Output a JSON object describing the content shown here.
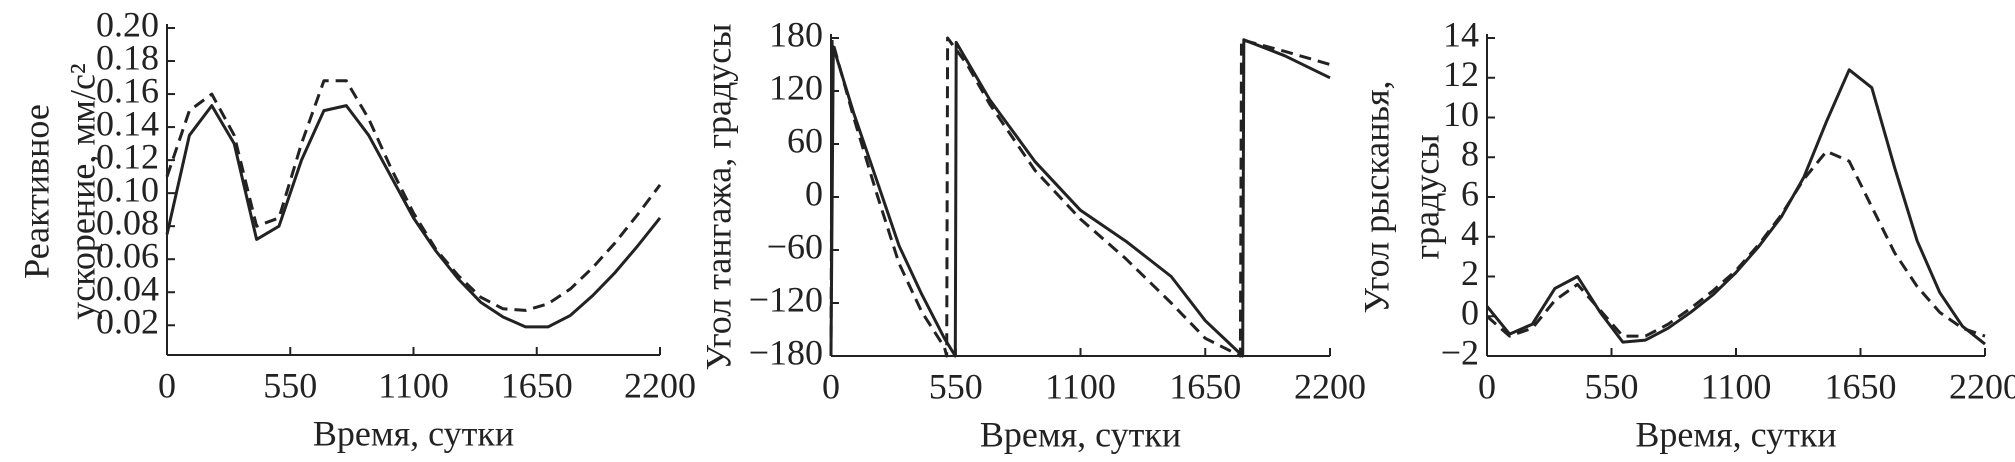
{
  "chart_data": [
    {
      "type": "line",
      "ylabel": [
        "Реактивное",
        "ускорение, мм/с²"
      ],
      "xlabel": "Время, сутки",
      "xlim": [
        0,
        2200
      ],
      "xticks": [
        0,
        550,
        1100,
        1650,
        2200
      ],
      "ylim": [
        0.002,
        0.2
      ],
      "yticks": [
        0.02,
        0.04,
        0.06,
        0.08,
        {
          "value": 0.1,
          "label": "0.10"
        },
        0.12,
        0.14,
        0.16,
        0.18,
        {
          "value": 0.2,
          "label": "0.20"
        }
      ],
      "x": [
        0,
        100,
        200,
        300,
        400,
        500,
        600,
        700,
        800,
        900,
        1000,
        1100,
        1200,
        1300,
        1400,
        1500,
        1600,
        1700,
        1800,
        1900,
        2000,
        2100,
        2200
      ],
      "series": [
        {
          "color": "#222222",
          "line_style": "solid",
          "values": [
            0.075,
            0.135,
            0.153,
            0.13,
            0.072,
            0.08,
            0.12,
            0.15,
            0.153,
            0.135,
            0.11,
            0.085,
            0.065,
            0.048,
            0.034,
            0.025,
            0.019,
            0.019,
            0.026,
            0.038,
            0.052,
            0.068,
            0.085
          ]
        },
        {
          "color": "#222222",
          "line_style": "dashed",
          "values": [
            0.11,
            0.15,
            0.16,
            0.135,
            0.08,
            0.085,
            0.13,
            0.168,
            0.168,
            0.145,
            0.115,
            0.088,
            0.066,
            0.05,
            0.037,
            0.03,
            0.029,
            0.033,
            0.042,
            0.055,
            0.07,
            0.087,
            0.105
          ]
        }
      ]
    },
    {
      "type": "line",
      "ylabel": [
        "Угол тангажа, градусы"
      ],
      "xlabel": "Время, сутки",
      "xlim": [
        0,
        2200
      ],
      "xticks": [
        0,
        550,
        1100,
        1650,
        2200
      ],
      "ylim": [
        -180,
        180
      ],
      "yticks": [
        {
          "value": -180,
          "label": "−180"
        },
        {
          "value": -120,
          "label": "−120"
        },
        {
          "value": -60,
          "label": "−60"
        },
        0,
        60,
        120,
        180
      ],
      "series": [
        {
          "color": "#222222",
          "line_style": "solid",
          "x": [
            0,
            10,
            100,
            200,
            300,
            400,
            500,
            548,
            552,
            700,
            900,
            1100,
            1300,
            1500,
            1650,
            1815,
            1820,
            2000,
            2200
          ],
          "values": [
            -175,
            170,
            95,
            20,
            -55,
            -110,
            -160,
            -180,
            175,
            110,
            40,
            -15,
            -50,
            -90,
            -140,
            -180,
            178,
            160,
            135
          ]
        },
        {
          "color": "#222222",
          "line_style": "dashed",
          "x": [
            0,
            5,
            100,
            200,
            300,
            400,
            500,
            510,
            514,
            600,
            700,
            900,
            1100,
            1300,
            1500,
            1650,
            1805,
            1810,
            2000,
            2200
          ],
          "values": [
            -180,
            178,
            90,
            5,
            -75,
            -130,
            -170,
            -180,
            180,
            150,
            105,
            30,
            -25,
            -70,
            -120,
            -160,
            -180,
            178,
            165,
            150
          ]
        }
      ]
    },
    {
      "type": "line",
      "ylabel": [
        "Угол рысканья,",
        "градусы"
      ],
      "xlabel": "Время, сутки",
      "xlim": [
        0,
        2200
      ],
      "xticks": [
        0,
        550,
        1100,
        1650,
        2200
      ],
      "ylim": [
        -2,
        14
      ],
      "yticks": [
        {
          "value": -2,
          "label": "−2"
        },
        0,
        2,
        4,
        6,
        8,
        10,
        12,
        14
      ],
      "x": [
        0,
        100,
        200,
        300,
        400,
        500,
        600,
        700,
        800,
        900,
        1000,
        1100,
        1200,
        1300,
        1400,
        1500,
        1600,
        1700,
        1800,
        1900,
        2000,
        2100,
        2200
      ],
      "series": [
        {
          "color": "#222222",
          "line_style": "solid",
          "values": [
            0.5,
            -0.9,
            -0.4,
            1.4,
            2.0,
            0.2,
            -1.3,
            -1.2,
            -0.6,
            0.2,
            1.1,
            2.2,
            3.5,
            5.0,
            7.0,
            9.8,
            12.4,
            11.5,
            7.5,
            3.8,
            1.2,
            -0.5,
            -1.4
          ]
        },
        {
          "color": "#222222",
          "line_style": "dashed",
          "values": [
            0,
            -1.0,
            -0.6,
            0.8,
            1.6,
            0.3,
            -1.0,
            -1.0,
            -0.4,
            0.4,
            1.3,
            2.3,
            3.6,
            5.1,
            6.9,
            8.3,
            7.8,
            5.5,
            3.2,
            1.5,
            0.2,
            -0.6,
            -1.0
          ]
        }
      ]
    }
  ]
}
